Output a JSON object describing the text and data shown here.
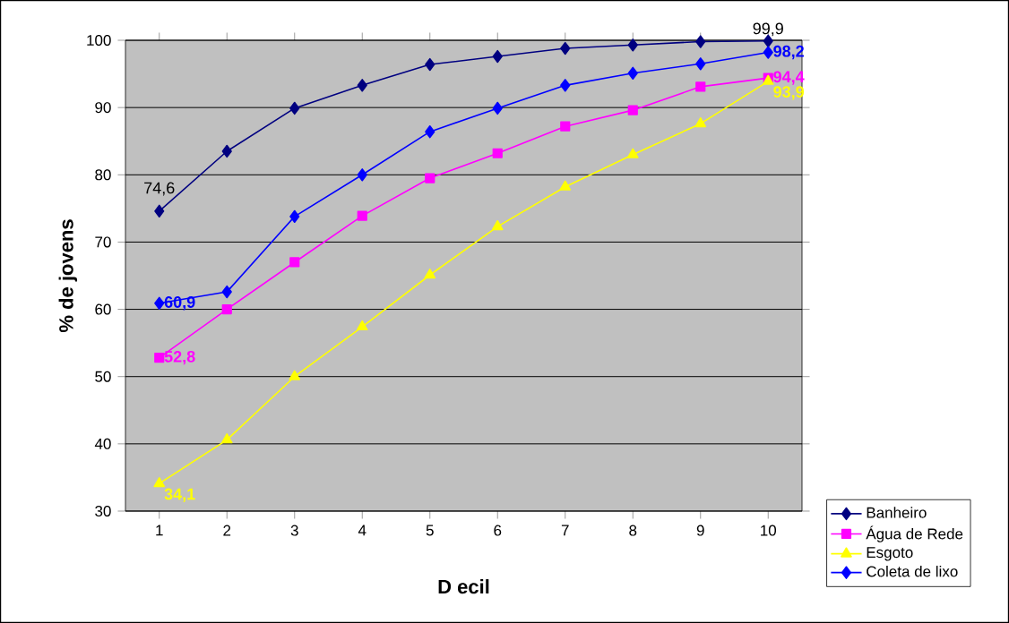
{
  "chart_data": {
    "type": "line",
    "xlabel": "D ecil",
    "ylabel": "% de jovens",
    "categories": [
      "1",
      "2",
      "3",
      "4",
      "5",
      "6",
      "7",
      "8",
      "9",
      "10"
    ],
    "ylim": [
      30,
      100
    ],
    "yticks": [
      30,
      40,
      50,
      60,
      70,
      80,
      90,
      100
    ],
    "grid": "y",
    "legend": "bottom right",
    "series": [
      {
        "name": "Banheiro",
        "color": "#000080",
        "marker": "diamond",
        "values": [
          74.6,
          83.5,
          89.9,
          93.3,
          96.4,
          97.6,
          98.8,
          99.3,
          99.8,
          99.9
        ],
        "value_labels": [
          "74,6",
          null,
          null,
          null,
          null,
          null,
          null,
          null,
          null,
          "99,9"
        ]
      },
      {
        "name": "Água de Rede",
        "color": "#ff00ff",
        "marker": "square",
        "values": [
          52.8,
          60.0,
          67.0,
          73.9,
          79.5,
          83.2,
          87.2,
          89.6,
          93.1,
          94.4
        ],
        "value_labels": [
          "52,8",
          null,
          null,
          null,
          null,
          null,
          null,
          null,
          null,
          "94,4"
        ]
      },
      {
        "name": "Esgoto",
        "color": "#ffff00",
        "marker": "triangle",
        "values": [
          34.1,
          40.6,
          50.0,
          57.4,
          65.1,
          72.3,
          78.2,
          83.0,
          87.6,
          93.9
        ],
        "value_labels": [
          "34,1",
          null,
          null,
          null,
          null,
          null,
          null,
          null,
          null,
          "93,9"
        ]
      },
      {
        "name": "Coleta de lixo",
        "color": "#0000ff",
        "marker": "diamond",
        "values": [
          60.9,
          62.6,
          73.8,
          80.0,
          86.4,
          89.9,
          93.3,
          95.1,
          96.5,
          98.2
        ],
        "value_labels": [
          "60,9",
          null,
          null,
          null,
          null,
          null,
          null,
          null,
          null,
          "98,2"
        ]
      }
    ]
  }
}
